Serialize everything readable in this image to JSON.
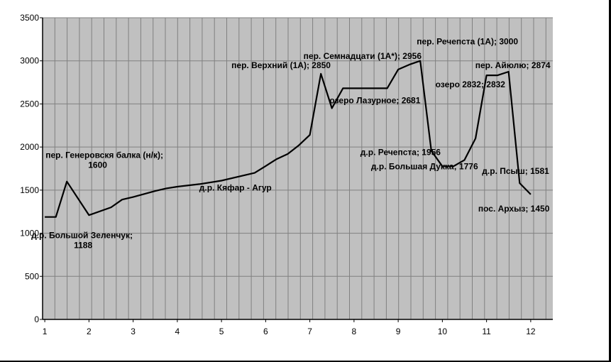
{
  "chart_data": {
    "type": "line",
    "title": "",
    "xlabel": "",
    "ylabel": "",
    "xlim": [
      0.95,
      12.5
    ],
    "ylim": [
      0,
      3500
    ],
    "grid": true,
    "y_ticks": [
      0,
      500,
      1000,
      1500,
      2000,
      2500,
      3000,
      3500
    ],
    "x_ticks": [
      1,
      2,
      3,
      4,
      5,
      6,
      7,
      8,
      9,
      10,
      11,
      12
    ],
    "x_tick_labels": [
      "1",
      "2",
      "3",
      "4",
      "5",
      "6",
      "7",
      "8",
      "9",
      "10",
      "11",
      "12"
    ],
    "plot_bg": "#C0C0C0",
    "grid_color": "#808080",
    "line_color": "#000000",
    "series": [
      {
        "x": [
          1.0,
          1.25,
          1.5,
          2.0,
          2.5,
          2.75,
          3.0,
          3.5,
          3.75,
          4.0,
          4.5,
          5.0,
          5.5,
          5.75,
          6.0,
          6.25,
          6.5,
          6.75,
          7.0,
          7.25,
          7.5,
          7.75,
          8.0,
          8.25,
          8.5,
          8.75,
          9.0,
          9.25,
          9.5,
          9.75,
          10.0,
          10.25,
          10.5,
          10.75,
          11.0,
          11.25,
          11.5,
          11.75,
          12.0
        ],
        "y": [
          1188,
          1188,
          1600,
          1210,
          1300,
          1390,
          1420,
          1490,
          1520,
          1540,
          1570,
          1610,
          1670,
          1700,
          1780,
          1860,
          1920,
          2020,
          2140,
          2850,
          2450,
          2681,
          2681,
          2681,
          2681,
          2681,
          2900,
          2956,
          3000,
          1956,
          1776,
          1776,
          1850,
          2100,
          2832,
          2832,
          2874,
          1581,
          1450
        ]
      }
    ],
    "annotations": [
      {
        "x": 1.5,
        "y": 1600,
        "lines": [
          "пер. Генеровскя балка (н/к);",
          "1600"
        ]
      },
      {
        "x": 1.0,
        "y": 1188,
        "lines": [
          "д.р. Большой Зеленчук;",
          "1188"
        ]
      },
      {
        "x": 5.75,
        "y": 1700,
        "lines": [
          "д.р. Кяфар - Агур"
        ]
      },
      {
        "x": 7.25,
        "y": 2850,
        "lines": [
          "пер. Верхний (1А); 2850"
        ]
      },
      {
        "x": 8.25,
        "y": 2681,
        "lines": [
          "озеро Лазурное; 2681"
        ]
      },
      {
        "x": 9.25,
        "y": 2956,
        "lines": [
          "пер. Семнадцати (1А*); 2956"
        ]
      },
      {
        "x": 9.5,
        "y": 3000,
        "lines": [
          "пер. Речепста (1А); 3000"
        ]
      },
      {
        "x": 9.75,
        "y": 1956,
        "lines": [
          "д.р. Речепста; 1956"
        ]
      },
      {
        "x": 10.25,
        "y": 1776,
        "lines": [
          "д.р. Большая Дукка; 1776"
        ]
      },
      {
        "x": 11.0,
        "y": 2832,
        "lines": [
          "озеро 2832; 2832"
        ]
      },
      {
        "x": 11.5,
        "y": 2874,
        "lines": [
          "пер. Айюлю; 2874"
        ]
      },
      {
        "x": 11.75,
        "y": 1581,
        "lines": [
          "д.р. Псыш; 1581"
        ]
      },
      {
        "x": 12.0,
        "y": 1450,
        "lines": [
          "пос. Архыз; 1450"
        ]
      }
    ]
  }
}
